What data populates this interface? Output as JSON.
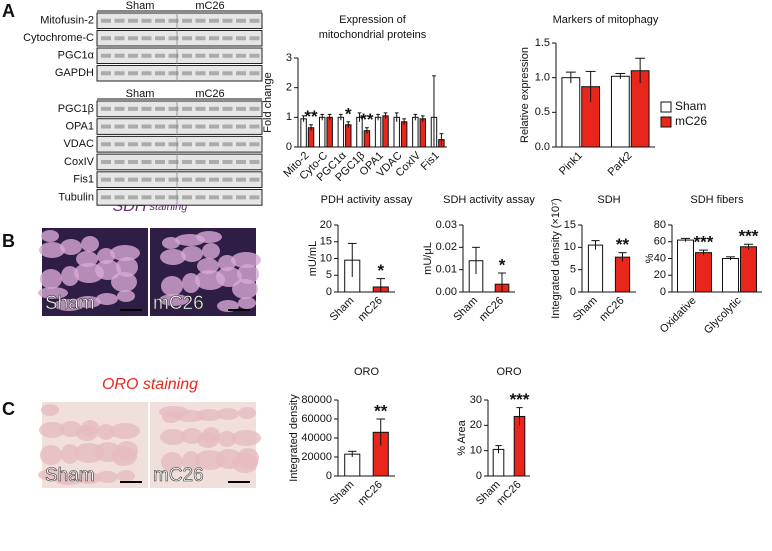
{
  "panel_labels": [
    "A",
    "B",
    "C"
  ],
  "blots": [
    {
      "header": [
        "Sham",
        "mC26"
      ],
      "proteins": [
        "Mitofusin-2",
        "Cytochrome-C",
        "PGC1α",
        "GAPDH"
      ]
    },
    {
      "header": [
        "Sham",
        "mC26"
      ],
      "proteins": [
        "PGC1β",
        "OPA1",
        "VDAC",
        "CoxIV",
        "Fis1",
        "Tubulin"
      ]
    }
  ],
  "stainings": [
    {
      "title": "SDH",
      "subtitle": "staining",
      "images": [
        "Sham",
        "mC26"
      ]
    },
    {
      "title": "ORO staining",
      "images": [
        "Sham",
        "mC26"
      ]
    }
  ],
  "chart_data": [
    {
      "type": "bar",
      "title": [
        "Expression of",
        "mitochondrial proteins"
      ],
      "y_label": "Fold change",
      "categories": [
        "Mito-2",
        "Cyto-C",
        "PGC1α",
        "PGC1β",
        "OPA1",
        "VDAC",
        "CoxIV",
        "Fis1"
      ],
      "series": [
        {
          "name": "Sham",
          "color": "#ffffff",
          "values": [
            0.95,
            1.0,
            1.0,
            1.0,
            1.0,
            1.0,
            1.0,
            1.0
          ],
          "errors": [
            0.1,
            0.1,
            0.1,
            0.15,
            0.1,
            0.15,
            0.1,
            1.4
          ]
        },
        {
          "name": "mC26",
          "color": "#e8261c",
          "values": [
            0.65,
            1.0,
            0.75,
            0.55,
            1.05,
            0.85,
            0.95,
            0.25
          ],
          "errors": [
            0.1,
            0.1,
            0.1,
            0.1,
            0.1,
            0.1,
            0.1,
            0.2
          ],
          "significance": [
            "**",
            null,
            "*",
            "**",
            null,
            null,
            null,
            null
          ]
        }
      ],
      "ylim": [
        0,
        3
      ],
      "yticks": [
        0,
        1,
        2,
        3
      ]
    },
    {
      "type": "bar",
      "title": [
        "Markers of mitophagy"
      ],
      "y_label": "Relative expression",
      "categories": [
        "Pink1",
        "Park2"
      ],
      "series": [
        {
          "name": "Sham",
          "color": "#ffffff",
          "values": [
            1.0,
            1.02
          ],
          "errors": [
            0.08,
            0.04
          ]
        },
        {
          "name": "mC26",
          "color": "#e8261c",
          "values": [
            0.87,
            1.1
          ],
          "errors": [
            0.22,
            0.18
          ]
        }
      ],
      "ylim": [
        0,
        1.5
      ],
      "yticks": [
        {
          "value": 0,
          "label": "0.0"
        },
        0.5,
        {
          "value": 1,
          "label": "1.0"
        },
        1.5
      ],
      "legend": "right"
    },
    {
      "type": "bar",
      "title": [
        "PDH activity assay"
      ],
      "y_label": "mU/mL",
      "categories": [
        "Sham",
        "mC26"
      ],
      "values": [
        9.5,
        1.5
      ],
      "errors": [
        5,
        2.5
      ],
      "colors": [
        "#ffffff",
        "#e8261c"
      ],
      "significance": [
        null,
        "*"
      ],
      "ylim": [
        0,
        20
      ],
      "yticks": [
        0,
        5,
        10,
        15,
        20
      ]
    },
    {
      "type": "bar",
      "title": [
        "SDH activity assay"
      ],
      "y_label": "mU/μL",
      "categories": [
        "Sham",
        "mC26"
      ],
      "values": [
        0.014,
        0.0035
      ],
      "errors": [
        0.006,
        0.005
      ],
      "colors": [
        "#ffffff",
        "#e8261c"
      ],
      "significance": [
        null,
        "*"
      ],
      "ylim": [
        0,
        0.03
      ],
      "yticks": [
        {
          "value": 0,
          "label": "0.00"
        },
        0.01,
        0.02,
        0.03
      ]
    },
    {
      "type": "bar",
      "title": [
        "SDH"
      ],
      "y_label": "Integrated density (×10⁷)",
      "categories": [
        "Sham",
        "mC26"
      ],
      "values": [
        10.5,
        7.8
      ],
      "errors": [
        1.0,
        1.0
      ],
      "colors": [
        "#ffffff",
        "#e8261c"
      ],
      "significance": [
        null,
        "**"
      ],
      "ylim": [
        0,
        15
      ],
      "yticks": [
        0,
        5,
        10,
        15
      ]
    },
    {
      "type": "bar",
      "title": [
        "SDH fibers"
      ],
      "y_label": "%",
      "categories": [
        "Oxidative",
        "Glycolytic"
      ],
      "series": [
        {
          "name": "Sham",
          "color": "#ffffff",
          "values": [
            62,
            40
          ],
          "errors": [
            2,
            2
          ]
        },
        {
          "name": "mC26",
          "color": "#e8261c",
          "values": [
            47,
            54
          ],
          "errors": [
            3,
            3
          ],
          "significance": [
            "***",
            "***"
          ]
        }
      ],
      "ylim": [
        0,
        80
      ],
      "yticks": [
        0,
        20,
        40,
        60,
        80
      ]
    },
    {
      "type": "bar",
      "title": [
        "ORO"
      ],
      "y_label": "Integrated density",
      "categories": [
        "Sham",
        "mC26"
      ],
      "values": [
        23000,
        46000
      ],
      "errors": [
        3000,
        14000
      ],
      "colors": [
        "#ffffff",
        "#e8261c"
      ],
      "significance": [
        null,
        "**"
      ],
      "ylim": [
        0,
        80000
      ],
      "yticks": [
        0,
        20000,
        40000,
        60000,
        80000
      ]
    },
    {
      "type": "bar",
      "title": [
        "ORO"
      ],
      "y_label": "% Area",
      "categories": [
        "Sham",
        "mC26"
      ],
      "values": [
        10.5,
        23.5
      ],
      "errors": [
        1.5,
        3.5
      ],
      "colors": [
        "#ffffff",
        "#e8261c"
      ],
      "significance": [
        null,
        "***"
      ],
      "ylim": [
        0,
        30
      ],
      "yticks": [
        0,
        10,
        20,
        30
      ]
    }
  ]
}
